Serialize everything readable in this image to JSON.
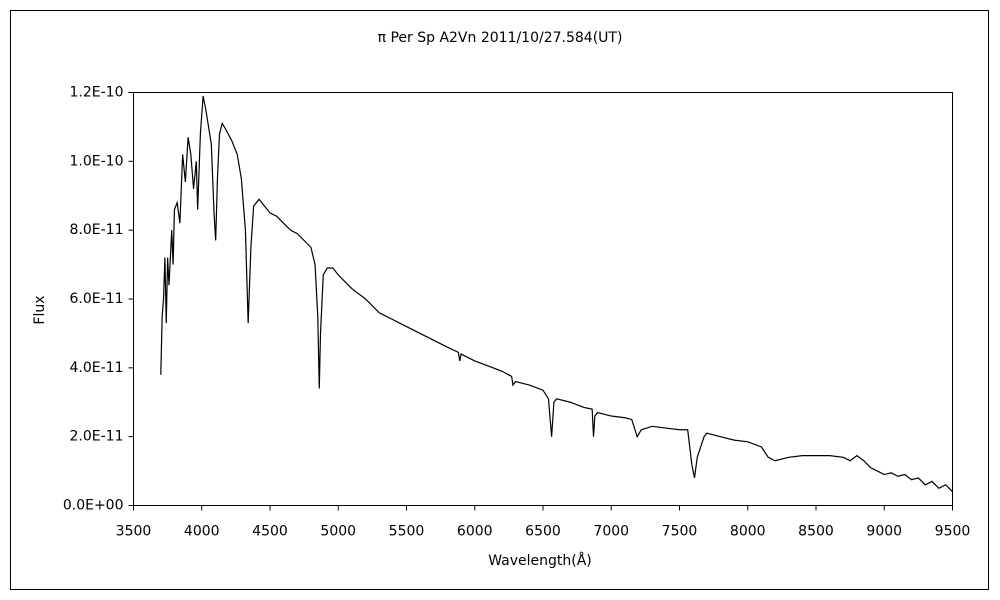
{
  "chart_data": {
    "type": "line",
    "title": "π Per   Sp A2Vn    2011/10/27.584(UT)",
    "x_label": "Wavelength(Å)",
    "y_label": "Flux",
    "xlim": [
      3500,
      9500
    ],
    "xticks": [
      3500,
      4000,
      4500,
      5000,
      5500,
      6000,
      6500,
      7000,
      7500,
      8000,
      8500,
      9000,
      9500
    ],
    "ylim": [
      0,
      1.2e-10
    ],
    "yticks": [
      {
        "value": 0,
        "label": "0.0E+00"
      },
      {
        "value": 2e-11,
        "label": "2.0E-11"
      },
      {
        "value": 4e-11,
        "label": "4.0E-11"
      },
      {
        "value": 6e-11,
        "label": "6.0E-11"
      },
      {
        "value": 8e-11,
        "label": "8.0E-11"
      },
      {
        "value": 1e-10,
        "label": "1.0E-10"
      },
      {
        "value": 1.2e-10,
        "label": "1.2E-10"
      }
    ],
    "grid": false,
    "series": [
      {
        "color": "#000000",
        "x": [
          3700,
          3710,
          3720,
          3730,
          3740,
          3750,
          3760,
          3780,
          3790,
          3800,
          3820,
          3840,
          3860,
          3880,
          3900,
          3920,
          3940,
          3960,
          3970,
          3990,
          4010,
          4030,
          4050,
          4070,
          4090,
          4102,
          4115,
          4130,
          4150,
          4180,
          4220,
          4260,
          4290,
          4320,
          4340,
          4360,
          4380,
          4420,
          4460,
          4500,
          4550,
          4600,
          4650,
          4700,
          4750,
          4800,
          4830,
          4850,
          4861,
          4870,
          4890,
          4920,
          4960,
          5000,
          5050,
          5100,
          5200,
          5300,
          5400,
          5500,
          5600,
          5700,
          5800,
          5880,
          5890,
          5900,
          6000,
          6100,
          6200,
          6270,
          6280,
          6300,
          6400,
          6500,
          6540,
          6563,
          6580,
          6600,
          6700,
          6800,
          6860,
          6870,
          6880,
          6900,
          7000,
          7100,
          7150,
          7190,
          7220,
          7300,
          7400,
          7500,
          7560,
          7590,
          7610,
          7630,
          7680,
          7700,
          7800,
          7900,
          8000,
          8100,
          8150,
          8200,
          8300,
          8400,
          8500,
          8600,
          8700,
          8750,
          8800,
          8850,
          8900,
          8950,
          9000,
          9050,
          9100,
          9150,
          9200,
          9250,
          9300,
          9350,
          9400,
          9450,
          9500
        ],
        "values": [
          3.8e-11,
          5.5e-11,
          6e-11,
          7.2e-11,
          5.3e-11,
          7.2e-11,
          6.4e-11,
          8e-11,
          7e-11,
          8.6e-11,
          8.8e-11,
          8.2e-11,
          1.02e-10,
          9.4e-11,
          1.07e-10,
          1.02e-10,
          9.2e-11,
          1e-10,
          8.6e-11,
          1.08e-10,
          1.19e-10,
          1.15e-10,
          1.1e-10,
          1.05e-10,
          8.5e-11,
          7.7e-11,
          9.5e-11,
          1.08e-10,
          1.11e-10,
          1.09e-10,
          1.06e-10,
          1.02e-10,
          9.5e-11,
          8e-11,
          5.3e-11,
          7.5e-11,
          8.7e-11,
          8.9e-11,
          8.7e-11,
          8.5e-11,
          8.4e-11,
          8.2e-11,
          8e-11,
          7.9e-11,
          7.7e-11,
          7.5e-11,
          7e-11,
          5.5e-11,
          3.4e-11,
          5e-11,
          6.7e-11,
          6.9e-11,
          6.9e-11,
          6.7e-11,
          6.5e-11,
          6.3e-11,
          6e-11,
          5.6e-11,
          5.4e-11,
          5.2e-11,
          5e-11,
          4.8e-11,
          4.6e-11,
          4.45e-11,
          4.2e-11,
          4.4e-11,
          4.2e-11,
          4.05e-11,
          3.9e-11,
          3.75e-11,
          3.5e-11,
          3.6e-11,
          3.5e-11,
          3.35e-11,
          3.1e-11,
          2e-11,
          3e-11,
          3.1e-11,
          3e-11,
          2.85e-11,
          2.8e-11,
          2e-11,
          2.6e-11,
          2.7e-11,
          2.6e-11,
          2.55e-11,
          2.5e-11,
          2e-11,
          2.2e-11,
          2.3e-11,
          2.25e-11,
          2.2e-11,
          2.2e-11,
          1.2e-11,
          8e-12,
          1.4e-11,
          2e-11,
          2.1e-11,
          2e-11,
          1.9e-11,
          1.85e-11,
          1.7e-11,
          1.4e-11,
          1.3e-11,
          1.4e-11,
          1.45e-11,
          1.45e-11,
          1.45e-11,
          1.4e-11,
          1.3e-11,
          1.45e-11,
          1.3e-11,
          1.1e-11,
          1e-11,
          9e-12,
          9.5e-12,
          8.5e-12,
          9e-12,
          7.5e-12,
          8e-12,
          6e-12,
          7e-12,
          5e-12,
          6e-12,
          4e-12
        ]
      }
    ]
  }
}
